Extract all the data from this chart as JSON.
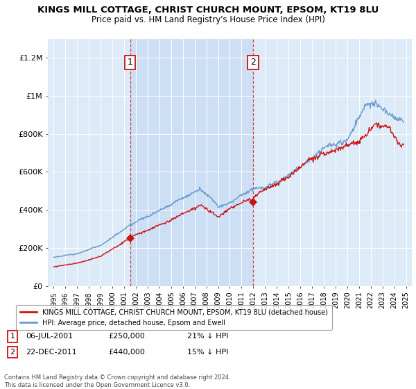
{
  "title": "KINGS MILL COTTAGE, CHRIST CHURCH MOUNT, EPSOM, KT19 8LU",
  "subtitle": "Price paid vs. HM Land Registry's House Price Index (HPI)",
  "legend_label_red": "KINGS MILL COTTAGE, CHRIST CHURCH MOUNT, EPSOM, KT19 8LU (detached house)",
  "legend_label_blue": "HPI: Average price, detached house, Epsom and Ewell",
  "ann1_num": "1",
  "ann1_date": "06-JUL-2001",
  "ann1_price": "£250,000",
  "ann1_hpi": "21% ↓ HPI",
  "ann2_num": "2",
  "ann2_date": "22-DEC-2011",
  "ann2_price": "£440,000",
  "ann2_hpi": "15% ↓ HPI",
  "footnote": "Contains HM Land Registry data © Crown copyright and database right 2024.\nThis data is licensed under the Open Government Licence v3.0.",
  "bg_color": "#ddeaf7",
  "shade_color": "#ccdff5",
  "red_color": "#cc1111",
  "blue_color": "#6699cc",
  "dash_color": "#cc3333",
  "sale1_x": 2001.51,
  "sale1_y": 250000,
  "sale2_x": 2011.97,
  "sale2_y": 440000,
  "ylim_min": 0,
  "ylim_max": 1300000,
  "xlim_min": 1994.5,
  "xlim_max": 2025.5,
  "yticks": [
    0,
    200000,
    400000,
    600000,
    800000,
    1000000,
    1200000
  ],
  "ytick_labels": [
    "£0",
    "£200K",
    "£400K",
    "£600K",
    "£800K",
    "£1M",
    "£1.2M"
  ],
  "xtick_start": 1995,
  "xtick_end": 2025
}
